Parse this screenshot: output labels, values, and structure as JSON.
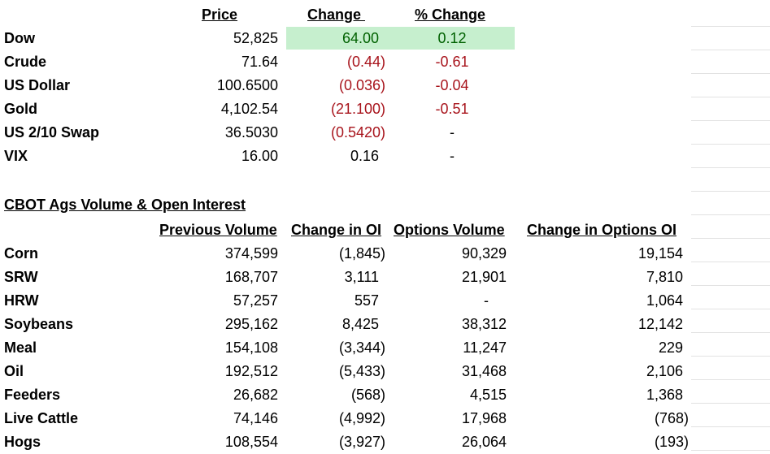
{
  "market": {
    "headers": [
      "Price",
      "Change ",
      "% Change"
    ],
    "rows": [
      [
        "Dow",
        "52,825",
        "64.00",
        "0.12"
      ],
      [
        "Crude",
        "71.64",
        "(0.44)",
        "-0.61"
      ],
      [
        "US Dollar",
        "100.6500",
        "(0.036)",
        "-0.04"
      ],
      [
        "Gold",
        "4,102.54",
        "(21.100)",
        "-0.51"
      ],
      [
        "US 2/10 Swap",
        "36.5030",
        "(0.5420)",
        "-"
      ],
      [
        "VIX",
        "16.00",
        "0.16",
        "-"
      ]
    ]
  },
  "ags": {
    "title": "CBOT Ags Volume & Open Interest",
    "headers": [
      "Previous Volume",
      "Change in OI",
      "Options Volume",
      "Change in Options OI"
    ],
    "rows": [
      [
        "Corn",
        "374,599",
        "(1,845)",
        "90,329",
        "19,154"
      ],
      [
        "SRW",
        "168,707",
        "3,111",
        "21,901",
        "7,810"
      ],
      [
        "HRW",
        "57,257",
        "557",
        "-",
        "1,064"
      ],
      [
        "Soybeans",
        "295,162",
        "8,425",
        "38,312",
        "12,142"
      ],
      [
        "Meal",
        "154,108",
        "(3,344)",
        "11,247",
        "229"
      ],
      [
        "Oil",
        "192,512",
        "(5,433)",
        "31,468",
        "2,106"
      ],
      [
        "Feeders",
        "26,682",
        "(568)",
        "4,515",
        "1,368"
      ],
      [
        "Live Cattle",
        "74,146",
        "(4,992)",
        "17,968",
        "(768)"
      ],
      [
        "Hogs",
        "108,554",
        "(3,927)",
        "26,064",
        "(193)"
      ]
    ]
  }
}
